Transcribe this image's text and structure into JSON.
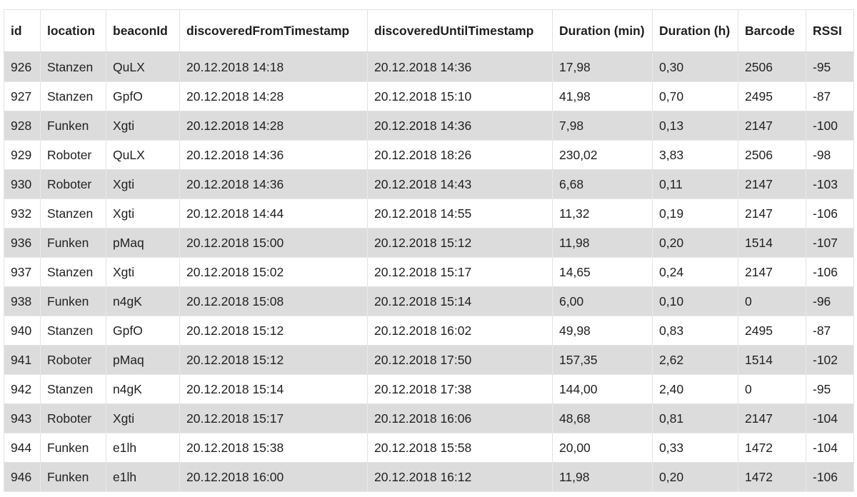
{
  "table": {
    "headers": [
      "id",
      "location",
      "beaconId",
      "discoveredFromTimestamp",
      "discoveredUntilTimestamp",
      "Duration (min)",
      "Duration (h)",
      "Barcode",
      "RSSI"
    ],
    "rows": [
      [
        "926",
        "Stanzen",
        "QuLX",
        "20.12.2018 14:18",
        "20.12.2018 14:36",
        "17,98",
        "0,30",
        "2506",
        "-95"
      ],
      [
        "927",
        "Stanzen",
        "GpfO",
        "20.12.2018 14:28",
        "20.12.2018 15:10",
        "41,98",
        "0,70",
        "2495",
        "-87"
      ],
      [
        "928",
        "Funken",
        "Xgti",
        "20.12.2018 14:28",
        "20.12.2018 14:36",
        "7,98",
        "0,13",
        "2147",
        "-100"
      ],
      [
        "929",
        "Roboter",
        "QuLX",
        "20.12.2018 14:36",
        "20.12.2018 18:26",
        "230,02",
        "3,83",
        "2506",
        "-98"
      ],
      [
        "930",
        "Roboter",
        "Xgti",
        "20.12.2018 14:36",
        "20.12.2018 14:43",
        "6,68",
        "0,11",
        "2147",
        "-103"
      ],
      [
        "932",
        "Stanzen",
        "Xgti",
        "20.12.2018 14:44",
        "20.12.2018 14:55",
        "11,32",
        "0,19",
        "2147",
        "-106"
      ],
      [
        "936",
        "Funken",
        "pMaq",
        "20.12.2018 15:00",
        "20.12.2018 15:12",
        "11,98",
        "0,20",
        "1514",
        "-107"
      ],
      [
        "937",
        "Stanzen",
        "Xgti",
        "20.12.2018 15:02",
        "20.12.2018 15:17",
        "14,65",
        "0,24",
        "2147",
        "-106"
      ],
      [
        "938",
        "Funken",
        "n4gK",
        "20.12.2018 15:08",
        "20.12.2018 15:14",
        "6,00",
        "0,10",
        "0",
        "-96"
      ],
      [
        "940",
        "Stanzen",
        "GpfO",
        "20.12.2018 15:12",
        "20.12.2018 16:02",
        "49,98",
        "0,83",
        "2495",
        "-87"
      ],
      [
        "941",
        "Roboter",
        "pMaq",
        "20.12.2018 15:12",
        "20.12.2018 17:50",
        "157,35",
        "2,62",
        "1514",
        "-102"
      ],
      [
        "942",
        "Stanzen",
        "n4gK",
        "20.12.2018 15:14",
        "20.12.2018 17:38",
        "144,00",
        "2,40",
        "0",
        "-95"
      ],
      [
        "943",
        "Roboter",
        "Xgti",
        "20.12.2018 15:17",
        "20.12.2018 16:06",
        "48,68",
        "0,81",
        "2147",
        "-104"
      ],
      [
        "944",
        "Funken",
        "e1lh",
        "20.12.2018 15:38",
        "20.12.2018 15:58",
        "20,00",
        "0,33",
        "1472",
        "-104"
      ],
      [
        "946",
        "Funken",
        "e1lh",
        "20.12.2018 16:00",
        "20.12.2018 16:12",
        "11,98",
        "0,20",
        "1472",
        "-106"
      ]
    ]
  }
}
